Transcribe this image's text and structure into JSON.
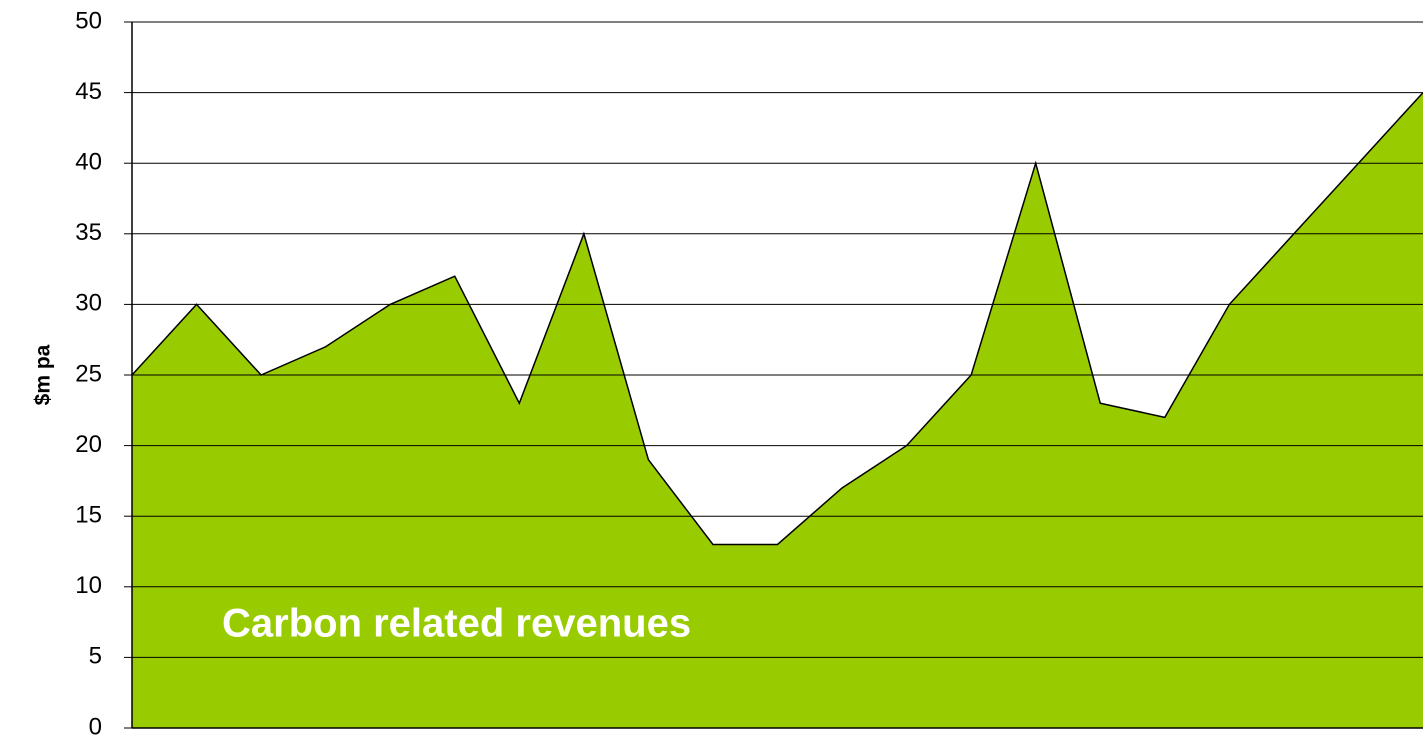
{
  "chart_data": {
    "type": "area",
    "ylabel": "$m pa",
    "annotation": "Carbon related revenues",
    "categories": [
      null,
      null,
      null,
      null,
      null,
      null,
      null,
      null,
      null,
      null,
      null,
      null,
      null,
      null,
      null,
      null,
      null,
      null,
      null,
      null,
      null
    ],
    "values": [
      25,
      30,
      25,
      27,
      30,
      32,
      23,
      35,
      19,
      13,
      13,
      17,
      20,
      25,
      40,
      23,
      22,
      30,
      35,
      40,
      45
    ],
    "color": "#99cc00",
    "ylim": [
      0,
      50
    ],
    "yticks": [
      0,
      5,
      10,
      15,
      20,
      25,
      30,
      35,
      40,
      45,
      50
    ],
    "grid": true
  }
}
